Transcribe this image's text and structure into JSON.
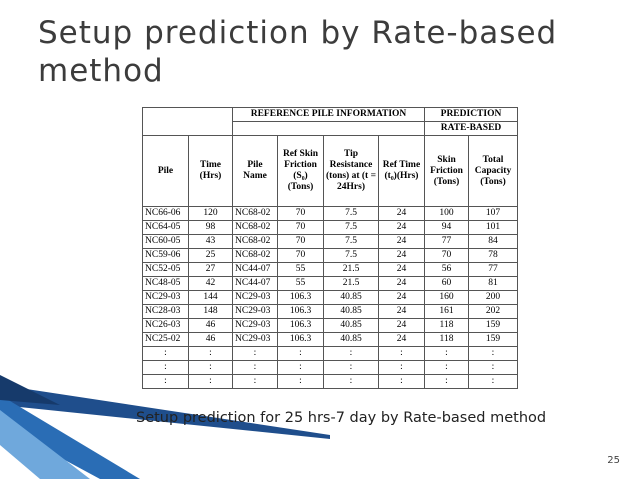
{
  "title": "Setup prediction by Rate-based method",
  "table": {
    "header_left": "REFERENCE PILE INFORMATION",
    "header_right": "PREDICTION",
    "header_sub": "RATE-BASED",
    "columns": [
      "Pile",
      "Time (Hrs)",
      "Pile Name",
      "Ref Skin Friction (S₀) (Tons)",
      "Tip Resistance (tons) at (t = 24Hrs)",
      "Ref Time (t₀)(Hrs)",
      "Skin Friction (Tons)",
      "Total Capacity (Tons)"
    ],
    "rows": [
      [
        "NC66-06",
        120,
        "NC68-02",
        70,
        7.5,
        24,
        100,
        107
      ],
      [
        "NC64-05",
        98,
        "NC68-02",
        70,
        7.5,
        24,
        94,
        101
      ],
      [
        "NC60-05",
        43,
        "NC68-02",
        70,
        7.5,
        24,
        77,
        84
      ],
      [
        "NC59-06",
        25,
        "NC68-02",
        70,
        7.5,
        24,
        70,
        78
      ],
      [
        "NC52-05",
        27,
        "NC44-07",
        55,
        21.5,
        24,
        56,
        77
      ],
      [
        "NC48-05",
        42,
        "NC44-07",
        55,
        21.5,
        24,
        60,
        81
      ],
      [
        "NC29-03",
        144,
        "NC29-03",
        106.3,
        40.85,
        24,
        160,
        200
      ],
      [
        "NC28-03",
        148,
        "NC29-03",
        106.3,
        40.85,
        24,
        161,
        202
      ],
      [
        "NC26-03",
        46,
        "NC29-03",
        106.3,
        40.85,
        24,
        118,
        159
      ],
      [
        "NC25-02",
        46,
        "NC29-03",
        106.3,
        40.85,
        24,
        118,
        159
      ],
      [
        ":",
        ":",
        ":",
        ":",
        ":",
        ":",
        ":",
        ":"
      ],
      [
        ":",
        ":",
        ":",
        ":",
        ":",
        ":",
        ":",
        ":"
      ],
      [
        ":",
        ":",
        ":",
        ":",
        ":",
        ":",
        ":",
        ":"
      ]
    ]
  },
  "caption": "Setup prediction for 25 hrs-7 day by Rate-based method",
  "page_number": 25
}
